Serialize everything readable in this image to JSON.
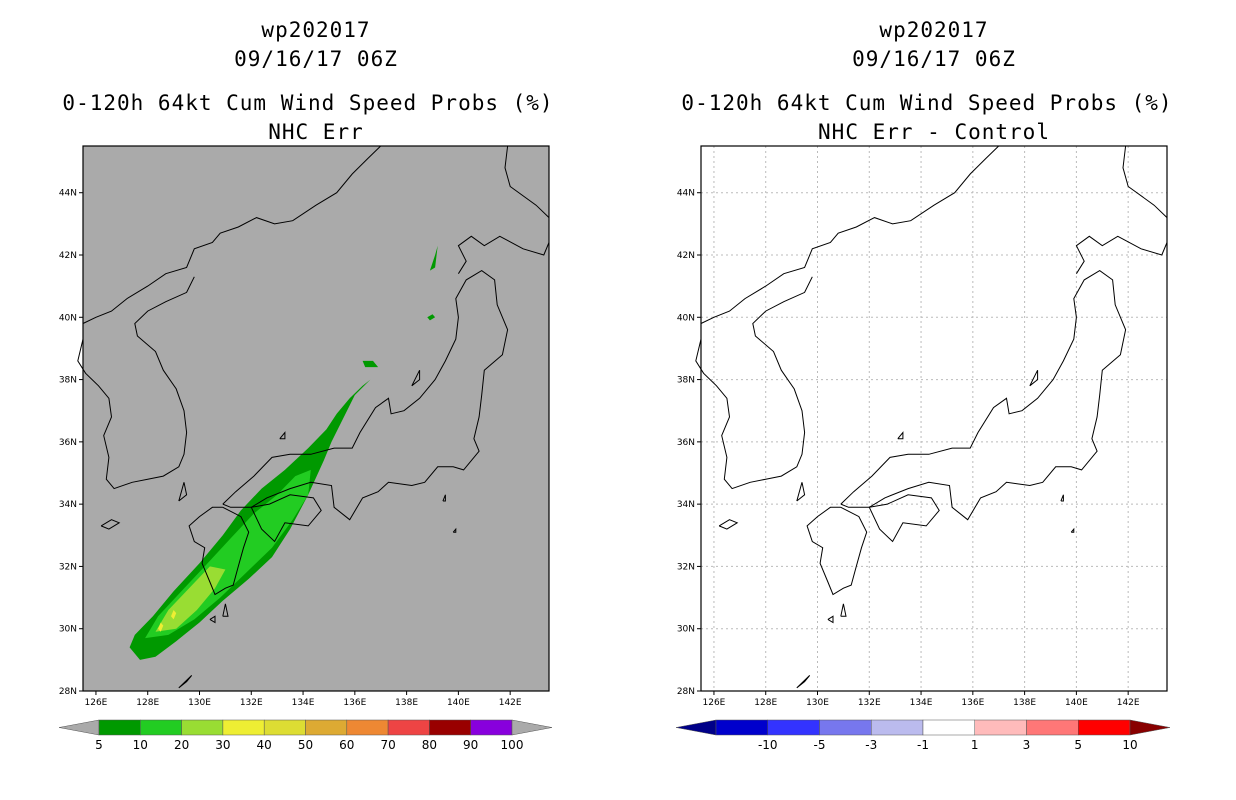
{
  "panels": [
    {
      "id": "left",
      "title_lines": [
        "wp202017",
        "09/16/17 06Z",
        "0-120h 64kt Cum Wind Speed Probs (%)",
        "NHC Err"
      ],
      "background": "#aaaaaa",
      "show_grid": false,
      "colorbar": {
        "colors": [
          "#009900",
          "#22cc22",
          "#99dd33",
          "#eeee33",
          "#dddd33",
          "#ddaa33",
          "#ee8833",
          "#ee4444",
          "#990000",
          "#8800dd"
        ],
        "under_color": "#aaaaaa",
        "over_color": "#aaaaaa",
        "labels": [
          "5",
          "10",
          "20",
          "30",
          "40",
          "50",
          "60",
          "70",
          "80",
          "90",
          "100"
        ]
      }
    },
    {
      "id": "right",
      "title_lines": [
        "wp202017",
        "09/16/17 06Z",
        "0-120h 64kt Cum Wind Speed Probs (%)",
        "NHC Err - Control"
      ],
      "background": "#ffffff",
      "show_grid": true,
      "colorbar": {
        "colors": [
          "#0000cc",
          "#3333ff",
          "#7777ee",
          "#bbbbee",
          "#ffffff",
          "#ffbbbb",
          "#ff7777",
          "#ff0000"
        ],
        "under_color": "#000088",
        "over_color": "#880000",
        "labels": [
          "-10",
          "-5",
          "-3",
          "-1",
          "1",
          "3",
          "5",
          "10"
        ]
      }
    }
  ],
  "chart_data": [
    {
      "type": "heatmap",
      "title": "0-120h 64kt Cum Wind Speed Probs (%)",
      "subtitle": "NHC Err",
      "storm": "wp202017",
      "time": "09/16/17 06Z",
      "xlim": [
        125.5,
        143.5
      ],
      "ylim": [
        28,
        45.5
      ],
      "xticks": [
        "126E",
        "128E",
        "130E",
        "132E",
        "134E",
        "136E",
        "138E",
        "140E",
        "142E"
      ],
      "yticks": [
        "28N",
        "30N",
        "32N",
        "34N",
        "36N",
        "38N",
        "40N",
        "42N",
        "44N"
      ],
      "levels": [
        5,
        10,
        20,
        30,
        40,
        50,
        60,
        70,
        80,
        90,
        100
      ],
      "filled_contours": [
        {
          "level": 5,
          "polygon": [
            [
              127.3,
              29.4
            ],
            [
              127.5,
              29.8
            ],
            [
              128.2,
              30.4
            ],
            [
              129.0,
              31.2
            ],
            [
              130.0,
              32.1
            ],
            [
              130.9,
              33.0
            ],
            [
              131.6,
              33.8
            ],
            [
              132.4,
              34.5
            ],
            [
              133.3,
              35.1
            ],
            [
              134.2,
              35.8
            ],
            [
              134.9,
              36.4
            ],
            [
              135.3,
              36.9
            ],
            [
              135.8,
              37.4
            ],
            [
              136.3,
              37.8
            ],
            [
              136.6,
              38.0
            ],
            [
              136.0,
              37.5
            ],
            [
              135.1,
              36.0
            ],
            [
              134.8,
              35.4
            ],
            [
              134.2,
              34.3
            ],
            [
              133.5,
              33.2
            ],
            [
              132.8,
              32.3
            ],
            [
              131.9,
              31.6
            ],
            [
              130.9,
              30.9
            ],
            [
              130.0,
              30.2
            ],
            [
              129.1,
              29.6
            ],
            [
              128.3,
              29.1
            ],
            [
              127.7,
              29.0
            ]
          ]
        },
        {
          "level": 5,
          "polygon": [
            [
              138.9,
              41.5
            ],
            [
              139.1,
              42.0
            ],
            [
              139.2,
              42.3
            ],
            [
              139.1,
              41.6
            ]
          ]
        },
        {
          "level": 5,
          "polygon": [
            [
              138.8,
              40.0
            ],
            [
              139.0,
              40.1
            ],
            [
              139.1,
              40.0
            ],
            [
              138.9,
              39.9
            ]
          ]
        },
        {
          "level": 5,
          "polygon": [
            [
              136.3,
              38.6
            ],
            [
              136.7,
              38.6
            ],
            [
              136.9,
              38.4
            ],
            [
              136.4,
              38.4
            ]
          ]
        },
        {
          "level": 10,
          "polygon": [
            [
              127.9,
              29.7
            ],
            [
              128.4,
              30.4
            ],
            [
              129.3,
              31.2
            ],
            [
              130.2,
              32.0
            ],
            [
              131.2,
              32.9
            ],
            [
              132.1,
              33.7
            ],
            [
              133.0,
              34.3
            ],
            [
              133.7,
              34.9
            ],
            [
              134.3,
              35.1
            ],
            [
              134.2,
              34.3
            ],
            [
              133.6,
              33.5
            ],
            [
              132.8,
              32.6
            ],
            [
              131.8,
              31.8
            ],
            [
              130.8,
              31.0
            ],
            [
              129.8,
              30.3
            ],
            [
              128.8,
              29.8
            ]
          ]
        },
        {
          "level": 20,
          "polygon": [
            [
              128.3,
              29.9
            ],
            [
              128.8,
              30.6
            ],
            [
              129.6,
              31.3
            ],
            [
              130.4,
              32.0
            ],
            [
              131.0,
              31.9
            ],
            [
              130.6,
              31.3
            ],
            [
              129.9,
              30.6
            ],
            [
              129.1,
              30.0
            ]
          ]
        },
        {
          "level": 30,
          "polygon": [
            [
              128.9,
              30.4
            ],
            [
              129.0,
              30.6
            ],
            [
              129.1,
              30.5
            ],
            [
              129.0,
              30.3
            ]
          ]
        },
        {
          "level": 30,
          "polygon": [
            [
              128.4,
              30.0
            ],
            [
              128.5,
              30.2
            ],
            [
              128.6,
              30.1
            ],
            [
              128.5,
              29.9
            ]
          ]
        }
      ]
    },
    {
      "type": "heatmap",
      "title": "0-120h 64kt Cum Wind Speed Probs (%)",
      "subtitle": "NHC Err - Control",
      "storm": "wp202017",
      "time": "09/16/17 06Z",
      "xlim": [
        125.5,
        143.5
      ],
      "ylim": [
        28,
        45.5
      ],
      "xticks": [
        "126E",
        "128E",
        "130E",
        "132E",
        "134E",
        "136E",
        "138E",
        "140E",
        "142E"
      ],
      "yticks": [
        "28N",
        "30N",
        "32N",
        "34N",
        "36N",
        "38N",
        "40N",
        "42N",
        "44N"
      ],
      "levels": [
        -10,
        -5,
        -3,
        -1,
        1,
        3,
        5,
        10
      ],
      "filled_contours": []
    }
  ]
}
